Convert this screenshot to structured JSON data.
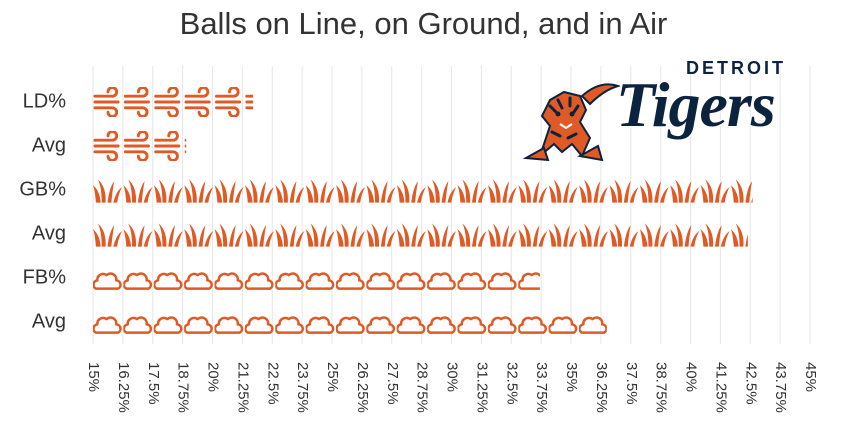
{
  "title": "Balls on Line, on Ground, and in Air",
  "logo": {
    "line1": "DETROIT",
    "line2": "Tigers"
  },
  "colors": {
    "accent": "#e05a26",
    "grid": "#e6e6e6",
    "text": "#333333",
    "navy": "#0c2340"
  },
  "chart_data": {
    "type": "bar",
    "orientation": "horizontal",
    "title": "Balls on Line, on Ground, and in Air",
    "categories": [
      "LD%",
      "Avg",
      "GB%",
      "Avg",
      "FB%",
      "Avg"
    ],
    "values": [
      21.7,
      18.9,
      42.6,
      42.4,
      33.7,
      36.5
    ],
    "icons": [
      "wind-icon",
      "wind-icon",
      "grass-icon",
      "grass-icon",
      "cloud-icon",
      "cloud-icon"
    ],
    "xlim": [
      15,
      45
    ],
    "x_ticks": [
      "15%",
      "16.25%",
      "17.5%",
      "18.75%",
      "20%",
      "21.25%",
      "22.5%",
      "23.75%",
      "25%",
      "26.25%",
      "27.5%",
      "28.75%",
      "30%",
      "31.25%",
      "32.5%",
      "33.75%",
      "35%",
      "36.25%",
      "37.5%",
      "38.75%",
      "40%",
      "41.25%",
      "42.5%",
      "43.75%",
      "45%"
    ],
    "grid": true
  }
}
